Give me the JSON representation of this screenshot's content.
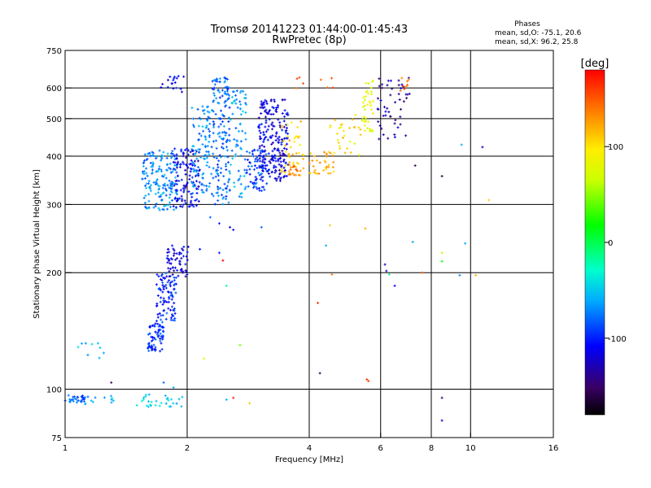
{
  "chart_data": {
    "type": "scatter",
    "title": "Tromsø 20141223 01:44:00-01:45:43",
    "subtitle": "RwPretec (8p)",
    "xlabel": "Frequency [MHz]",
    "ylabel": "Stationary phase Virtual Height [km]",
    "x_scale": "log",
    "y_scale": "log",
    "xlim": [
      1,
      16
    ],
    "ylim": [
      75,
      750
    ],
    "x_ticks": [
      {
        "value": 1,
        "label": "1"
      },
      {
        "value": 2,
        "label": "2"
      },
      {
        "value": 4,
        "label": "4"
      },
      {
        "value": 6,
        "label": "6"
      },
      {
        "value": 8,
        "label": "8"
      },
      {
        "value": 10,
        "label": "10"
      },
      {
        "value": 16,
        "label": "16"
      }
    ],
    "y_ticks": [
      {
        "value": 75,
        "label": "75"
      },
      {
        "value": 100,
        "label": "100"
      },
      {
        "value": 200,
        "label": "200"
      },
      {
        "value": 300,
        "label": "300"
      },
      {
        "value": 400,
        "label": "400"
      },
      {
        "value": 500,
        "label": "500"
      },
      {
        "value": 600,
        "label": "600"
      },
      {
        "value": 750,
        "label": "750"
      }
    ],
    "x_gridlines": [
      2,
      4,
      6,
      8,
      10
    ],
    "y_gridlines": [
      100,
      200,
      300,
      400,
      500,
      600
    ],
    "grid": true,
    "stats_title": "Phases",
    "stats_lines": [
      "mean, sd,O: -75.1, 20.6",
      "mean, sd,X: 96.2, 25.8"
    ],
    "colorbar": {
      "label": "[deg]",
      "range": [
        -180,
        180
      ],
      "ticks": [
        {
          "value": 100,
          "label": "100"
        },
        {
          "value": 0,
          "label": "0"
        },
        {
          "value": -100,
          "label": "-100"
        }
      ]
    },
    "clusters": [
      {
        "fmin": 1.0,
        "fmax": 1.12,
        "hmin": 92,
        "hmax": 97,
        "n": 30,
        "phase": -80
      },
      {
        "fmin": 1.12,
        "fmax": 1.35,
        "hmin": 90,
        "hmax": 96,
        "n": 12,
        "phase": -60
      },
      {
        "fmin": 1.05,
        "fmax": 1.3,
        "hmin": 118,
        "hmax": 138,
        "n": 9,
        "phase": -60
      },
      {
        "fmin": 1.45,
        "fmax": 1.95,
        "hmin": 90,
        "hmax": 97,
        "n": 30,
        "phase": -50
      },
      {
        "fmin": 1.6,
        "fmax": 1.75,
        "hmin": 125,
        "hmax": 150,
        "n": 70,
        "phase": -95
      },
      {
        "fmin": 1.68,
        "fmax": 1.88,
        "hmin": 150,
        "hmax": 200,
        "n": 90,
        "phase": -100
      },
      {
        "fmin": 1.78,
        "fmax": 2.02,
        "hmin": 195,
        "hmax": 235,
        "n": 60,
        "phase": -115
      },
      {
        "fmin": 1.55,
        "fmax": 1.9,
        "hmin": 290,
        "hmax": 415,
        "n": 170,
        "phase": -70
      },
      {
        "fmin": 1.85,
        "fmax": 2.15,
        "hmin": 295,
        "hmax": 420,
        "n": 120,
        "phase": -110
      },
      {
        "fmin": 1.72,
        "fmax": 1.98,
        "hmin": 585,
        "hmax": 645,
        "n": 18,
        "phase": -110
      },
      {
        "fmin": 2.05,
        "fmax": 2.3,
        "hmin": 320,
        "hmax": 540,
        "n": 100,
        "phase": -70
      },
      {
        "fmin": 2.3,
        "fmax": 2.55,
        "hmin": 300,
        "hmax": 645,
        "n": 160,
        "phase": -80
      },
      {
        "fmin": 2.55,
        "fmax": 2.8,
        "hmin": 310,
        "hmax": 600,
        "n": 70,
        "phase": -65
      },
      {
        "fmin": 2.8,
        "fmax": 3.15,
        "hmin": 325,
        "hmax": 420,
        "n": 70,
        "phase": -90
      },
      {
        "fmin": 3.0,
        "fmax": 3.55,
        "hmin": 345,
        "hmax": 560,
        "n": 220,
        "phase": -115
      },
      {
        "fmin": 3.4,
        "fmax": 3.9,
        "hmin": 355,
        "hmax": 500,
        "n": 45,
        "phase": 110
      },
      {
        "fmin": 3.55,
        "fmax": 3.8,
        "hmin": 355,
        "hmax": 380,
        "n": 15,
        "phase": 140
      },
      {
        "fmin": 4.0,
        "fmax": 4.6,
        "hmin": 360,
        "hmax": 410,
        "n": 35,
        "phase": 120
      },
      {
        "fmin": 4.5,
        "fmax": 5.4,
        "hmin": 400,
        "hmax": 520,
        "n": 30,
        "phase": 100
      },
      {
        "fmin": 5.4,
        "fmax": 5.75,
        "hmin": 460,
        "hmax": 640,
        "n": 40,
        "phase": 80
      },
      {
        "fmin": 5.9,
        "fmax": 7.1,
        "hmin": 440,
        "hmax": 640,
        "n": 50,
        "phase": -130
      },
      {
        "fmin": 6.7,
        "fmax": 7.1,
        "hmin": 590,
        "hmax": 640,
        "n": 8,
        "phase": 140
      },
      {
        "fmin": 3.7,
        "fmax": 4.7,
        "hmin": 590,
        "hmax": 650,
        "n": 8,
        "phase": 150
      }
    ],
    "points": [
      {
        "f": 2.55,
        "h": 262,
        "phase": -120
      },
      {
        "f": 2.6,
        "h": 258,
        "phase": -110
      },
      {
        "f": 2.28,
        "h": 278,
        "phase": -80
      },
      {
        "f": 2.4,
        "h": 268,
        "phase": -100
      },
      {
        "f": 3.05,
        "h": 262,
        "phase": -80
      },
      {
        "f": 2.15,
        "h": 230,
        "phase": -110
      },
      {
        "f": 2.4,
        "h": 225,
        "phase": -100
      },
      {
        "f": 2.45,
        "h": 215,
        "phase": 180
      },
      {
        "f": 2.5,
        "h": 185,
        "phase": -20
      },
      {
        "f": 2.7,
        "h": 130,
        "phase": 40
      },
      {
        "f": 2.2,
        "h": 120,
        "phase": 80
      },
      {
        "f": 2.6,
        "h": 95,
        "phase": 170
      },
      {
        "f": 2.85,
        "h": 92,
        "phase": 110
      },
      {
        "f": 2.5,
        "h": 94,
        "phase": -60
      },
      {
        "f": 4.5,
        "h": 265,
        "phase": 110
      },
      {
        "f": 4.4,
        "h": 235,
        "phase": -60
      },
      {
        "f": 4.55,
        "h": 198,
        "phase": 140
      },
      {
        "f": 4.2,
        "h": 167,
        "phase": 160
      },
      {
        "f": 4.25,
        "h": 110,
        "phase": -150
      },
      {
        "f": 5.55,
        "h": 106,
        "phase": 160
      },
      {
        "f": 5.6,
        "h": 105,
        "phase": 160
      },
      {
        "f": 5.5,
        "h": 260,
        "phase": 120
      },
      {
        "f": 6.15,
        "h": 210,
        "phase": -130
      },
      {
        "f": 6.2,
        "h": 202,
        "phase": -130
      },
      {
        "f": 6.5,
        "h": 185,
        "phase": -110
      },
      {
        "f": 6.3,
        "h": 198,
        "phase": -10
      },
      {
        "f": 7.3,
        "h": 378,
        "phase": -150
      },
      {
        "f": 7.2,
        "h": 240,
        "phase": -60
      },
      {
        "f": 7.6,
        "h": 200,
        "phase": 150
      },
      {
        "f": 8.5,
        "h": 355,
        "phase": -160
      },
      {
        "f": 8.5,
        "h": 225,
        "phase": 60
      },
      {
        "f": 8.5,
        "h": 214,
        "phase": 20
      },
      {
        "f": 8.5,
        "h": 95,
        "phase": -150
      },
      {
        "f": 8.5,
        "h": 83,
        "phase": -120
      },
      {
        "f": 9.4,
        "h": 197,
        "phase": -70
      },
      {
        "f": 9.7,
        "h": 238,
        "phase": -60
      },
      {
        "f": 9.5,
        "h": 428,
        "phase": -60
      },
      {
        "f": 10.7,
        "h": 422,
        "phase": -120
      },
      {
        "f": 11.1,
        "h": 308,
        "phase": 110
      },
      {
        "f": 10.3,
        "h": 197,
        "phase": 120
      },
      {
        "f": 1.3,
        "h": 104,
        "phase": -150
      },
      {
        "f": 1.75,
        "h": 104,
        "phase": -80
      },
      {
        "f": 1.85,
        "h": 101,
        "phase": -60
      }
    ]
  }
}
